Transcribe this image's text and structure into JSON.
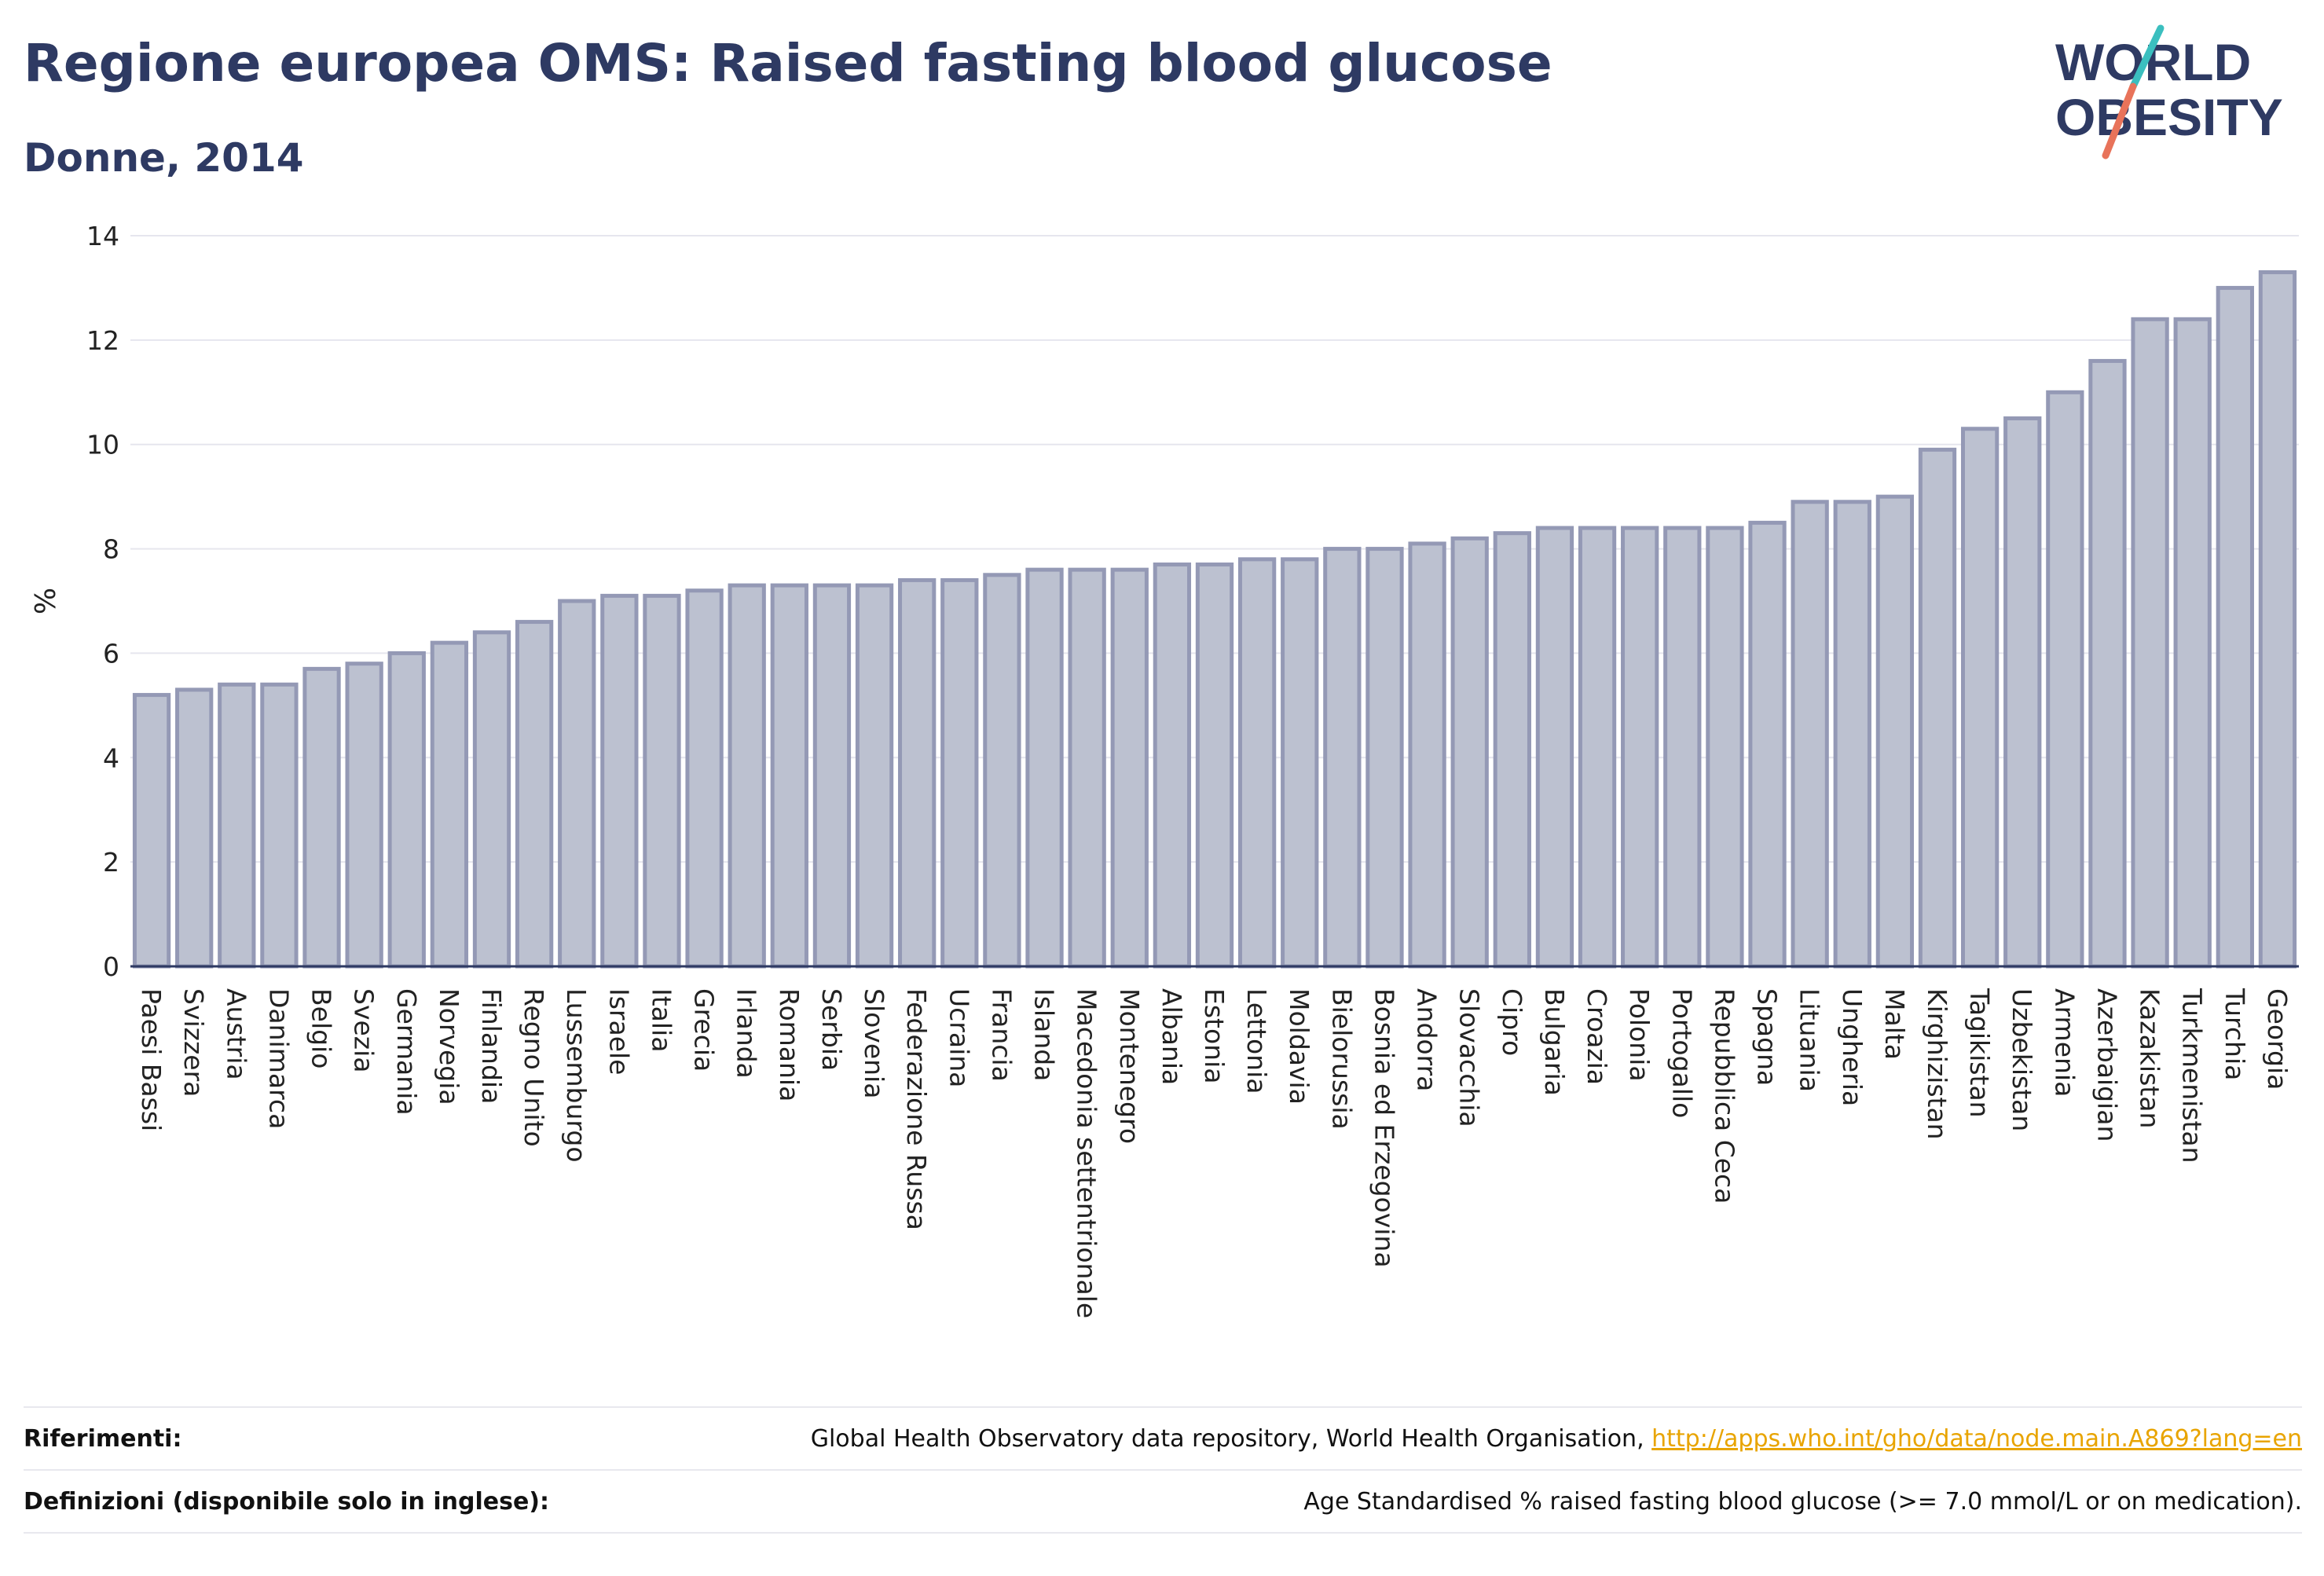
{
  "header": {
    "title": "Regione europea OMS: Raised fasting blood glucose",
    "subtitle": "Donne, 2014"
  },
  "logo": {
    "line1": "WORLD",
    "line2": "OBESITY",
    "colors": {
      "text": "#2e3a63",
      "slash_top": "#3bbfbf",
      "slash_bottom": "#e8735a"
    }
  },
  "chart_data": {
    "type": "bar",
    "title": "Regione europea OMS: Raised fasting blood glucose",
    "subtitle": "Donne, 2014",
    "xlabel": "",
    "ylabel": "%",
    "ylim": [
      0,
      14
    ],
    "yticks": [
      0,
      2,
      4,
      6,
      8,
      10,
      12,
      14
    ],
    "grid": "horizontal",
    "bar_fill": "#bcc1d0",
    "bar_stroke": "#9499b5",
    "categories": [
      "Paesi Bassi",
      "Svizzera",
      "Austria",
      "Danimarca",
      "Belgio",
      "Svezia",
      "Germania",
      "Norvegia",
      "Finlandia",
      "Regno Unito",
      "Lussemburgo",
      "Israele",
      "Italia",
      "Grecia",
      "Irlanda",
      "Romania",
      "Serbia",
      "Slovenia",
      "Federazione Russa",
      "Ucraina",
      "Francia",
      "Islanda",
      "Macedonia settentrionale",
      "Montenegro",
      "Albania",
      "Estonia",
      "Lettonia",
      "Moldavia",
      "Bielorussia",
      "Bosnia ed Erzegovina",
      "Andorra",
      "Slovacchia",
      "Cipro",
      "Bulgaria",
      "Croazia",
      "Polonia",
      "Portogallo",
      "Repubblica Ceca",
      "Spagna",
      "Lituania",
      "Ungheria",
      "Malta",
      "Kirghizistan",
      "Tagikistan",
      "Uzbekistan",
      "Armenia",
      "Azerbaigian",
      "Kazakistan",
      "Turkmenistan",
      "Turchia",
      "Georgia"
    ],
    "values": [
      5.2,
      5.3,
      5.4,
      5.4,
      5.7,
      5.8,
      6.0,
      6.2,
      6.4,
      6.6,
      7.0,
      7.1,
      7.1,
      7.2,
      7.3,
      7.3,
      7.3,
      7.3,
      7.4,
      7.4,
      7.5,
      7.6,
      7.6,
      7.6,
      7.7,
      7.7,
      7.8,
      7.8,
      8.0,
      8.0,
      8.1,
      8.2,
      8.3,
      8.4,
      8.4,
      8.4,
      8.4,
      8.4,
      8.5,
      8.9,
      8.9,
      9.0,
      9.9,
      10.3,
      10.5,
      11.0,
      11.6,
      12.4,
      12.4,
      13.0,
      13.3
    ]
  },
  "footer": {
    "references_label": "Riferimenti:",
    "references_text": "Global Health Observatory data repository, World Health Organisation, ",
    "references_link": "http://apps.who.int/gho/data/node.main.A869?lang=en",
    "definitions_label": "Definizioni (disponibile solo in inglese):",
    "definitions_text": "Age Standardised % raised fasting blood glucose (>= 7.0 mmol/L or on medication)."
  }
}
